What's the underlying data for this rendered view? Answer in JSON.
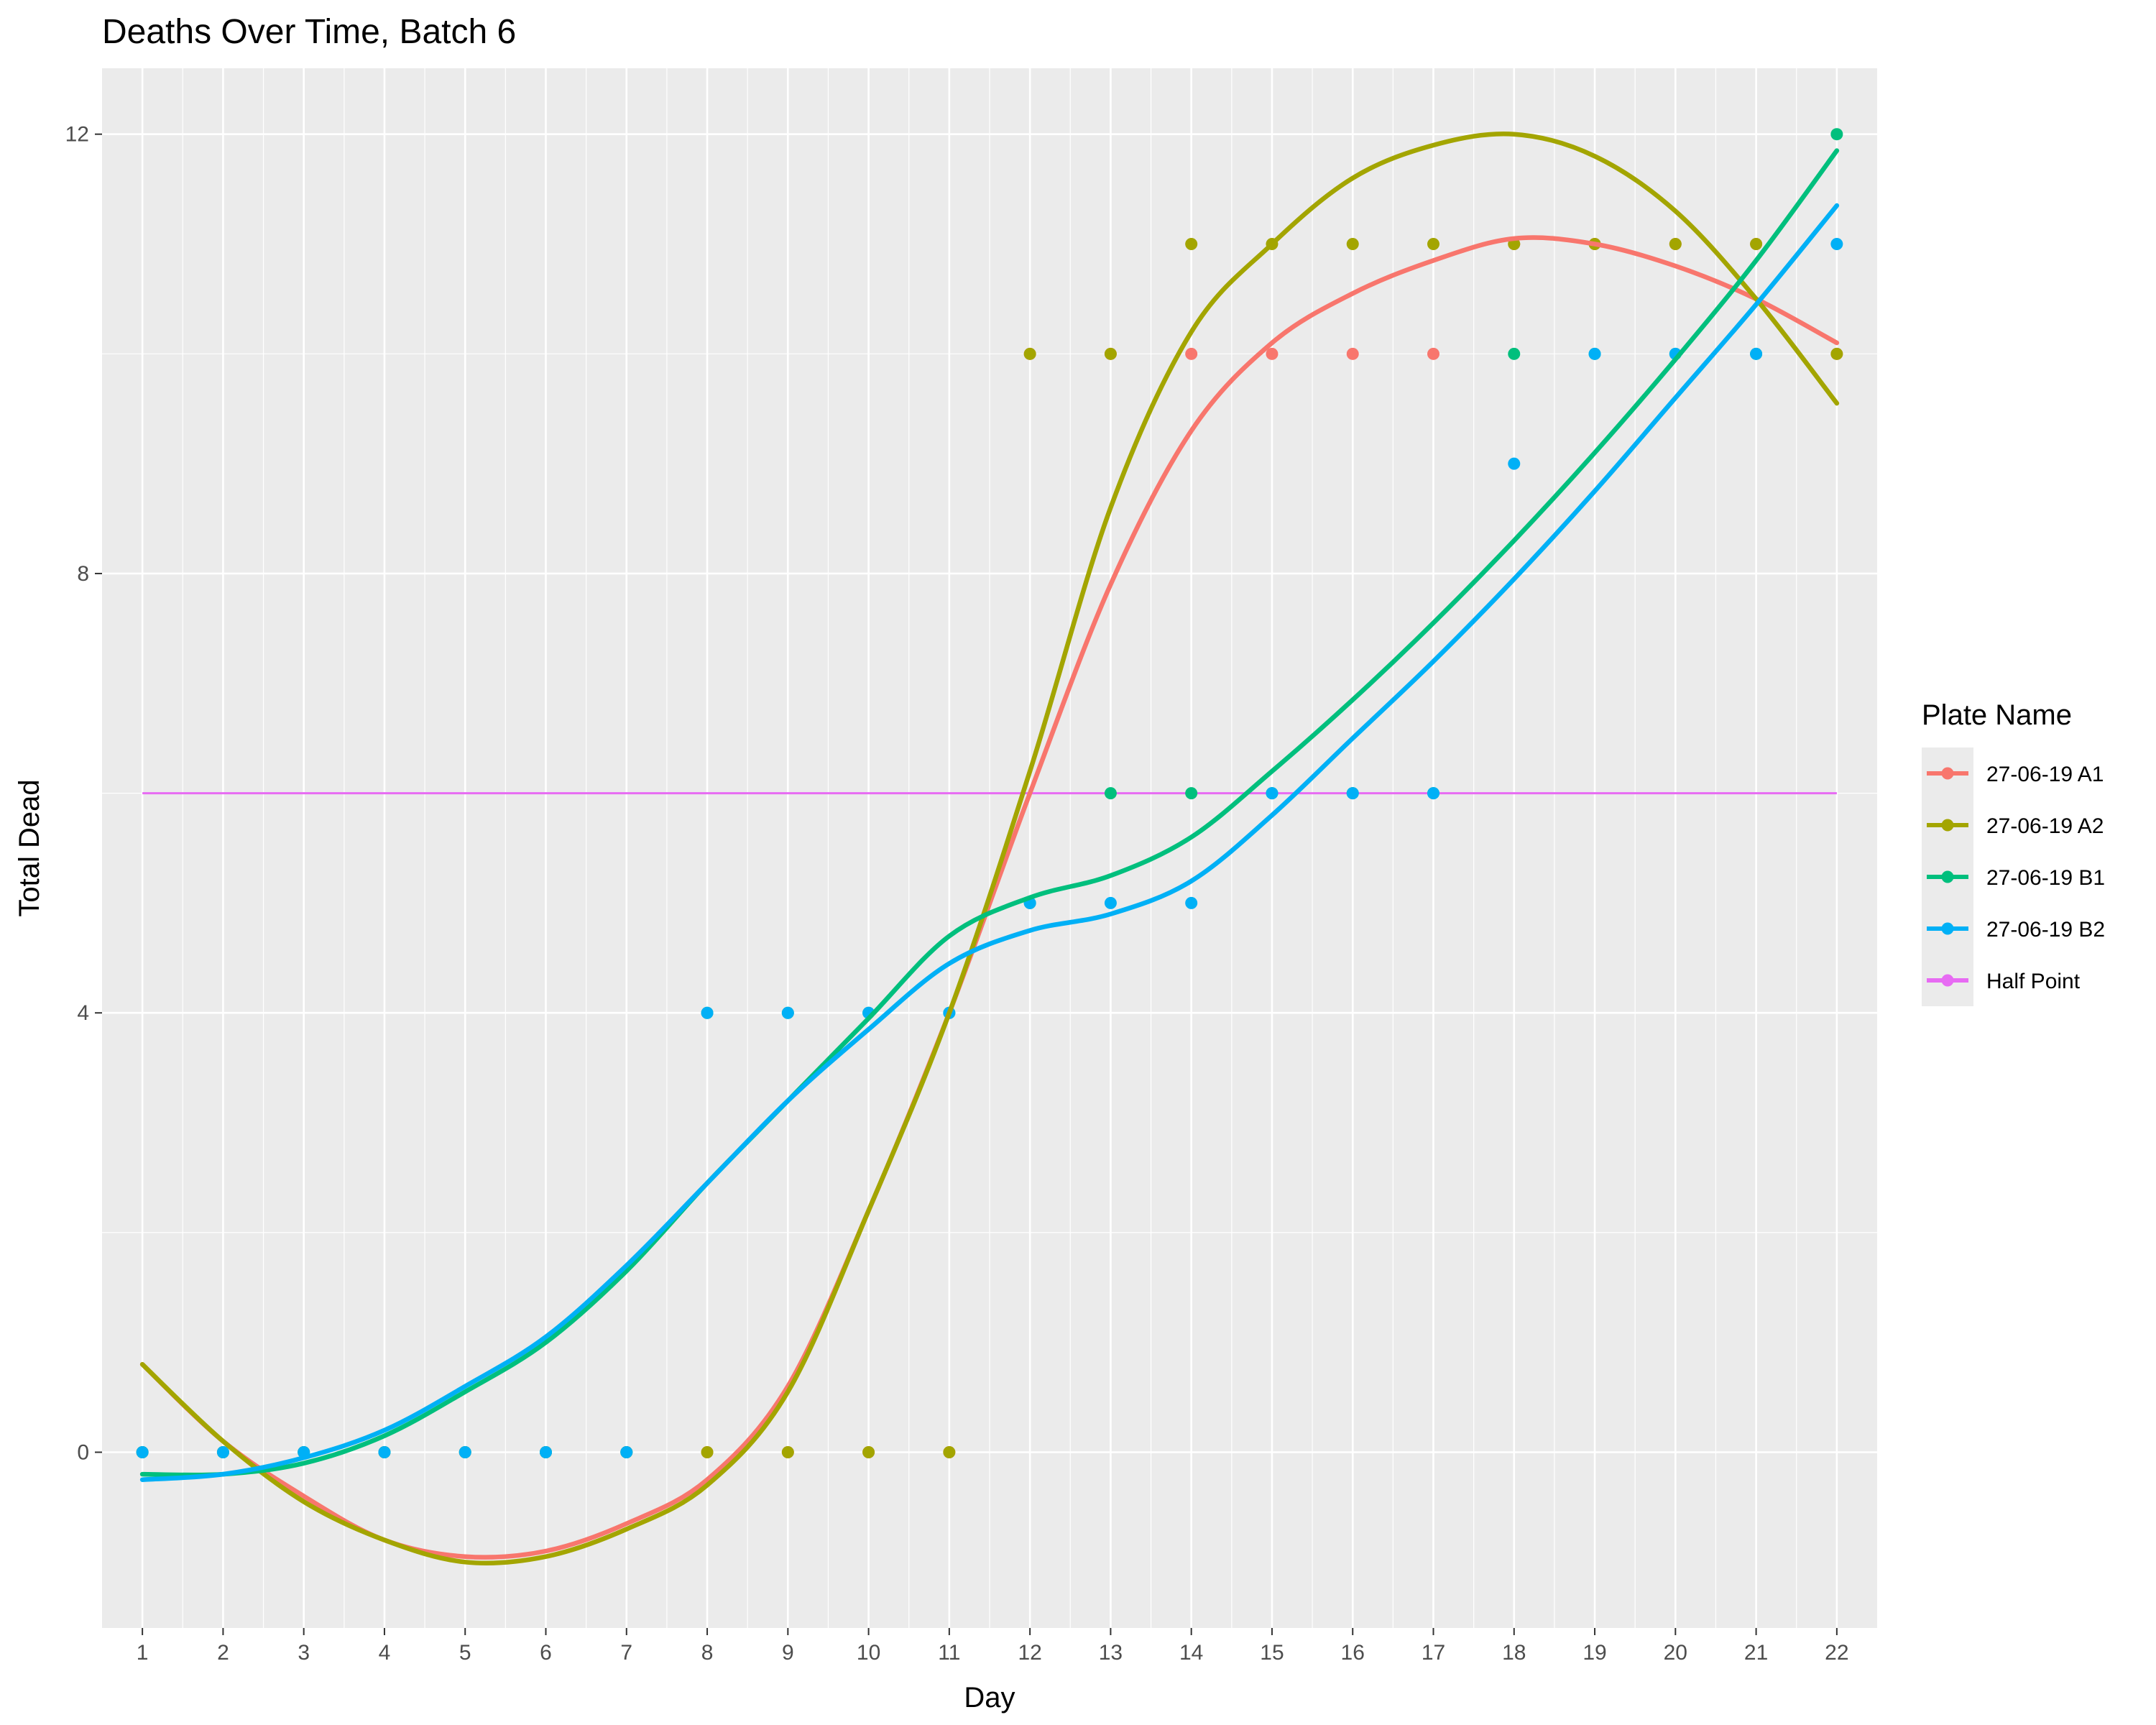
{
  "chart_data": {
    "type": "scatter",
    "title": "Deaths Over Time, Batch 6",
    "xlabel": "Day",
    "ylabel": "Total Dead",
    "xlim": [
      0.5,
      22.5
    ],
    "ylim": [
      -1.6,
      12.6
    ],
    "x_ticks": [
      1,
      2,
      3,
      4,
      5,
      6,
      7,
      8,
      9,
      10,
      11,
      12,
      13,
      14,
      15,
      16,
      17,
      18,
      19,
      20,
      21,
      22
    ],
    "x_tick_labels": [
      "1",
      "2",
      "3",
      "4",
      "5",
      "6",
      "7",
      "8",
      "9",
      "10",
      "11",
      "12",
      "13",
      "14",
      "15",
      "16",
      "17",
      "18",
      "19",
      "20",
      "21",
      "22"
    ],
    "y_ticks": [
      0,
      4,
      8,
      12
    ],
    "y_tick_labels": [
      "0",
      "4",
      "8",
      "12"
    ],
    "grid": true,
    "legend": {
      "title": "Plate Name",
      "position": "right"
    },
    "series": [
      {
        "name": "27-06-19 A1",
        "color": "#F8766D",
        "points": [
          [
            1,
            0
          ],
          [
            2,
            0
          ],
          [
            3,
            0
          ],
          [
            4,
            0
          ],
          [
            5,
            0
          ],
          [
            6,
            0
          ],
          [
            7,
            0
          ],
          [
            8,
            0
          ],
          [
            9,
            0
          ],
          [
            10,
            0
          ],
          [
            11,
            0
          ],
          [
            12,
            10
          ],
          [
            13,
            10
          ],
          [
            14,
            10
          ],
          [
            15,
            10
          ],
          [
            16,
            10
          ],
          [
            17,
            10
          ],
          [
            18,
            11
          ],
          [
            19,
            11
          ],
          [
            20,
            11
          ],
          [
            21,
            11
          ],
          [
            22,
            10
          ]
        ],
        "smooth": [
          [
            1,
            0.8
          ],
          [
            2,
            0.1
          ],
          [
            3,
            -0.4
          ],
          [
            4,
            -0.8
          ],
          [
            5,
            -0.95
          ],
          [
            6,
            -0.9
          ],
          [
            7,
            -0.65
          ],
          [
            8,
            -0.25
          ],
          [
            9,
            0.6
          ],
          [
            10,
            2.2
          ],
          [
            11,
            4.0
          ],
          [
            12,
            6.0
          ],
          [
            13,
            7.9
          ],
          [
            14,
            9.3
          ],
          [
            15,
            10.1
          ],
          [
            16,
            10.55
          ],
          [
            17,
            10.85
          ],
          [
            18,
            11.05
          ],
          [
            19,
            11.0
          ],
          [
            20,
            10.8
          ],
          [
            21,
            10.5
          ],
          [
            22,
            10.1
          ]
        ]
      },
      {
        "name": "27-06-19 A2",
        "color": "#A3A500",
        "points": [
          [
            1,
            0
          ],
          [
            2,
            0
          ],
          [
            3,
            0
          ],
          [
            4,
            0
          ],
          [
            5,
            0
          ],
          [
            6,
            0
          ],
          [
            7,
            0
          ],
          [
            8,
            0
          ],
          [
            9,
            0
          ],
          [
            10,
            0
          ],
          [
            11,
            0
          ],
          [
            12,
            10
          ],
          [
            13,
            10
          ],
          [
            14,
            11
          ],
          [
            15,
            11
          ],
          [
            16,
            11
          ],
          [
            17,
            11
          ],
          [
            18,
            11
          ],
          [
            19,
            11
          ],
          [
            20,
            11
          ],
          [
            21,
            11
          ],
          [
            22,
            10
          ]
        ],
        "smooth": [
          [
            1,
            0.8
          ],
          [
            2,
            0.1
          ],
          [
            3,
            -0.45
          ],
          [
            4,
            -0.8
          ],
          [
            5,
            -1.0
          ],
          [
            6,
            -0.95
          ],
          [
            7,
            -0.7
          ],
          [
            8,
            -0.3
          ],
          [
            9,
            0.55
          ],
          [
            10,
            2.2
          ],
          [
            11,
            4.0
          ],
          [
            12,
            6.2
          ],
          [
            13,
            8.6
          ],
          [
            14,
            10.2
          ],
          [
            15,
            11.0
          ],
          [
            16,
            11.6
          ],
          [
            17,
            11.9
          ],
          [
            18,
            12.0
          ],
          [
            19,
            11.8
          ],
          [
            20,
            11.3
          ],
          [
            21,
            10.5
          ],
          [
            22,
            9.55
          ]
        ]
      },
      {
        "name": "27-06-19 B1",
        "color": "#00BF7D",
        "points": [
          [
            1,
            0
          ],
          [
            2,
            0
          ],
          [
            3,
            0
          ],
          [
            4,
            0
          ],
          [
            5,
            0
          ],
          [
            6,
            0
          ],
          [
            7,
            0
          ],
          [
            8,
            4
          ],
          [
            9,
            4
          ],
          [
            10,
            4
          ],
          [
            11,
            4
          ],
          [
            12,
            5
          ],
          [
            13,
            6
          ],
          [
            14,
            6
          ],
          [
            15,
            6
          ],
          [
            16,
            6
          ],
          [
            17,
            6
          ],
          [
            18,
            10
          ],
          [
            19,
            10
          ],
          [
            20,
            10
          ],
          [
            21,
            10
          ],
          [
            22,
            12
          ]
        ],
        "smooth": [
          [
            1,
            -0.2
          ],
          [
            2,
            -0.2
          ],
          [
            3,
            -0.1
          ],
          [
            4,
            0.15
          ],
          [
            5,
            0.55
          ],
          [
            6,
            1.0
          ],
          [
            7,
            1.65
          ],
          [
            8,
            2.45
          ],
          [
            9,
            3.2
          ],
          [
            10,
            3.95
          ],
          [
            11,
            4.7
          ],
          [
            12,
            5.05
          ],
          [
            13,
            5.25
          ],
          [
            14,
            5.6
          ],
          [
            15,
            6.2
          ],
          [
            16,
            6.85
          ],
          [
            17,
            7.55
          ],
          [
            18,
            8.3
          ],
          [
            19,
            9.1
          ],
          [
            20,
            9.95
          ],
          [
            21,
            10.85
          ],
          [
            22,
            11.85
          ]
        ]
      },
      {
        "name": "27-06-19 B2",
        "color": "#00B0F6",
        "points": [
          [
            1,
            0
          ],
          [
            2,
            0
          ],
          [
            3,
            0
          ],
          [
            4,
            0
          ],
          [
            5,
            0
          ],
          [
            6,
            0
          ],
          [
            7,
            0
          ],
          [
            8,
            4
          ],
          [
            9,
            4
          ],
          [
            10,
            4
          ],
          [
            11,
            4
          ],
          [
            12,
            5
          ],
          [
            13,
            5
          ],
          [
            14,
            5
          ],
          [
            15,
            6
          ],
          [
            16,
            6
          ],
          [
            17,
            6
          ],
          [
            18,
            9
          ],
          [
            19,
            10
          ],
          [
            20,
            10
          ],
          [
            21,
            10
          ],
          [
            22,
            11
          ]
        ],
        "smooth": [
          [
            1,
            -0.25
          ],
          [
            2,
            -0.2
          ],
          [
            3,
            -0.05
          ],
          [
            4,
            0.2
          ],
          [
            5,
            0.6
          ],
          [
            6,
            1.05
          ],
          [
            7,
            1.7
          ],
          [
            8,
            2.45
          ],
          [
            9,
            3.2
          ],
          [
            10,
            3.85
          ],
          [
            11,
            4.45
          ],
          [
            12,
            4.75
          ],
          [
            13,
            4.9
          ],
          [
            14,
            5.2
          ],
          [
            15,
            5.8
          ],
          [
            16,
            6.5
          ],
          [
            17,
            7.2
          ],
          [
            18,
            7.95
          ],
          [
            19,
            8.75
          ],
          [
            20,
            9.6
          ],
          [
            21,
            10.45
          ],
          [
            22,
            11.35
          ]
        ]
      },
      {
        "name": "Half Point",
        "color": "#E76BF3",
        "line": [
          [
            1,
            6
          ],
          [
            22,
            6
          ]
        ]
      }
    ]
  }
}
